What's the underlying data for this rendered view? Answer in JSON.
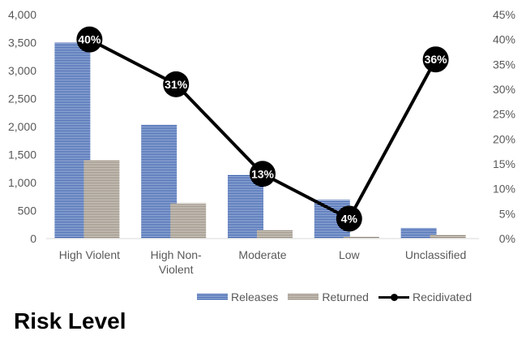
{
  "chart_data": {
    "type": "bar",
    "title": "Risk Level",
    "categories": [
      "High Violent",
      "High Non-Violent",
      "Moderate",
      "Low",
      "Unclassified"
    ],
    "category_lines": [
      [
        "High Violent"
      ],
      [
        "High Non-",
        "Violent"
      ],
      [
        "Moderate"
      ],
      [
        "Low"
      ],
      [
        "Unclassified"
      ]
    ],
    "series": [
      {
        "name": "Releases",
        "type": "bar",
        "axis": "left",
        "values": [
          3500,
          2030,
          1140,
          690,
          190
        ]
      },
      {
        "name": "Returned",
        "type": "bar",
        "axis": "left",
        "values": [
          1400,
          630,
          150,
          30,
          70
        ]
      },
      {
        "name": "Recidivated",
        "type": "line",
        "axis": "right",
        "values": [
          40,
          31,
          13,
          4,
          36
        ],
        "data_labels": [
          "40%",
          "31%",
          "13%",
          "4%",
          "36%"
        ]
      }
    ],
    "y_left": {
      "min": 0,
      "max": 4000,
      "step": 500,
      "tick_labels": [
        "0",
        "500",
        "1,000",
        "1,500",
        "2,000",
        "2,500",
        "3,000",
        "3,500",
        "4,000"
      ]
    },
    "y_right": {
      "min": 0,
      "max": 45,
      "step": 5,
      "tick_labels": [
        "0%",
        "5%",
        "10%",
        "15%",
        "20%",
        "25%",
        "30%",
        "35%",
        "40%",
        "45%"
      ]
    },
    "legend": {
      "position": "bottom-right",
      "entries": [
        "Releases",
        "Returned",
        "Recidivated"
      ]
    },
    "grid": false,
    "colors": {
      "releases": "#2f55a4",
      "releases_light": "#b4c6e7",
      "returned": "#8c8275",
      "returned_light": "#e0dbd3",
      "line": "#000000"
    }
  }
}
